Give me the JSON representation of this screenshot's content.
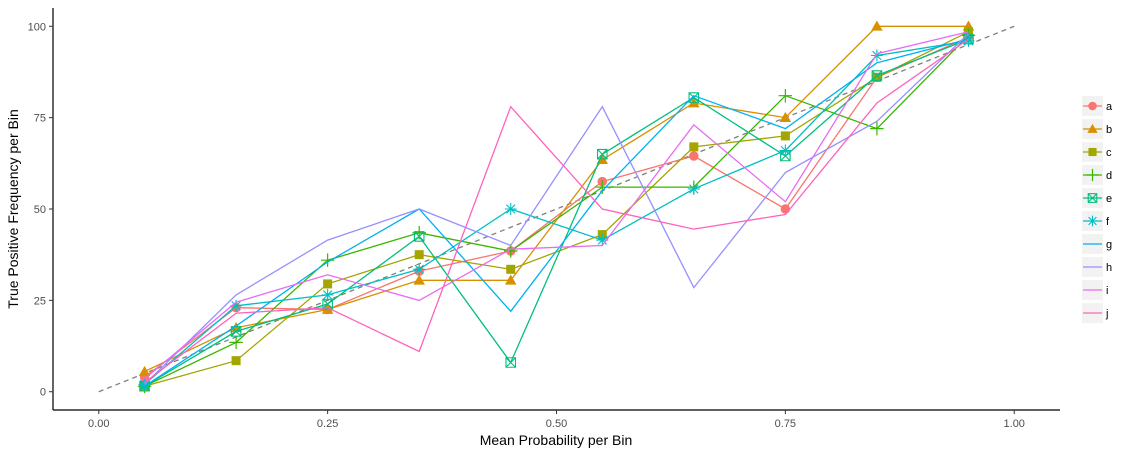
{
  "chart_data": {
    "type": "line",
    "xlabel": "Mean Probability per Bin",
    "ylabel": "True Positive Frequency per Bin",
    "xlim": [
      -0.05,
      1.05
    ],
    "ylim": [
      -5,
      105
    ],
    "x_ticks": [
      0,
      0.25,
      0.5,
      0.75,
      1
    ],
    "x_tick_labels": [
      "0.00",
      "0.25",
      "0.50",
      "0.75",
      "1.00"
    ],
    "y_ticks": [
      0,
      25,
      50,
      75,
      100
    ],
    "y_tick_labels": [
      "0",
      "25",
      "50",
      "75",
      "100"
    ],
    "grid": false,
    "legend_position": "right",
    "reference_line": {
      "x": [
        0,
        1
      ],
      "y": [
        0,
        100
      ],
      "style": "dashed",
      "color": "#7f7f7f"
    },
    "x": [
      0.05,
      0.15,
      0.25,
      0.35,
      0.45,
      0.55,
      0.65,
      0.75,
      0.85,
      0.95
    ],
    "series": [
      {
        "name": "a",
        "color": "#F8766D",
        "marker": "circle",
        "values": [
          4,
          23,
          22.5,
          33,
          38.5,
          57.5,
          64.5,
          50,
          86,
          97
        ]
      },
      {
        "name": "b",
        "color": "#D89000",
        "marker": "triangle",
        "values": [
          5.5,
          17.5,
          22.5,
          30.5,
          30.5,
          63.5,
          79,
          75,
          100,
          100
        ]
      },
      {
        "name": "c",
        "color": "#A3A500",
        "marker": "square",
        "values": [
          1.5,
          8.5,
          29.5,
          37.5,
          33.5,
          43,
          67,
          70,
          86,
          98.5
        ]
      },
      {
        "name": "d",
        "color": "#39B600",
        "marker": "plus",
        "values": [
          1.5,
          13.5,
          36,
          43.5,
          38.5,
          56,
          56,
          81,
          72,
          97.5
        ]
      },
      {
        "name": "e",
        "color": "#00BF7D",
        "marker": "boxcross",
        "values": [
          1.5,
          16.5,
          24,
          42.5,
          8,
          65,
          80.5,
          64.5,
          86.5,
          96.5
        ]
      },
      {
        "name": "f",
        "color": "#00BFC4",
        "marker": "star",
        "values": [
          2,
          23.5,
          26.5,
          33.5,
          50,
          41.5,
          55.5,
          66,
          92,
          96
        ]
      },
      {
        "name": "g",
        "color": "#00B0F6",
        "marker": "none",
        "values": [
          1.5,
          18,
          35.5,
          50,
          22,
          55,
          81,
          72,
          90,
          96.5
        ]
      },
      {
        "name": "h",
        "color": "#9590FF",
        "marker": "none",
        "values": [
          2,
          26.5,
          41.5,
          50,
          40,
          78,
          28.5,
          60,
          74,
          98
        ]
      },
      {
        "name": "i",
        "color": "#E76BF3",
        "marker": "none",
        "values": [
          3.5,
          24.5,
          32,
          25,
          39,
          40,
          73,
          52,
          92.5,
          98.5
        ]
      },
      {
        "name": "j",
        "color": "#FF62BC",
        "marker": "none",
        "values": [
          2.5,
          21.5,
          23,
          11,
          78,
          50,
          44.5,
          48.5,
          79,
          96.5
        ]
      }
    ]
  }
}
